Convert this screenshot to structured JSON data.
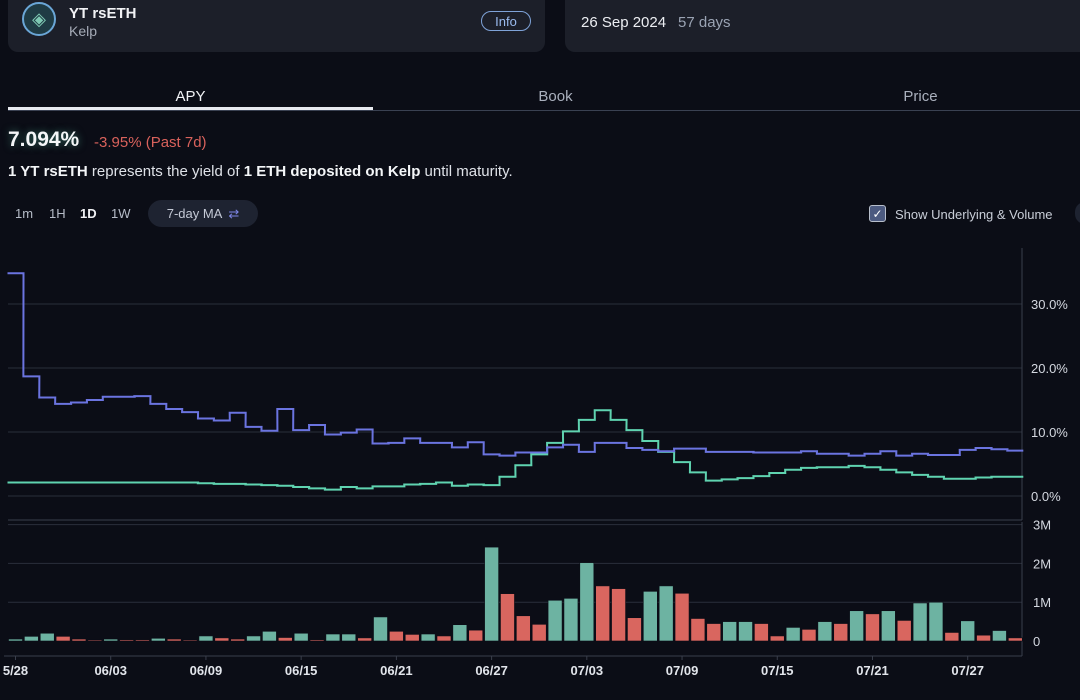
{
  "token": {
    "name": "YT rsETH",
    "protocol": "Kelp",
    "info_label": "Info",
    "logo_icon": "ethereum-layers-icon"
  },
  "maturity": {
    "date": "26 Sep 2024",
    "days": "57 days"
  },
  "tabs": [
    {
      "label": "APY",
      "active": true
    },
    {
      "label": "Book",
      "active": false
    },
    {
      "label": "Price",
      "active": false
    }
  ],
  "stats": {
    "apy": "7.094%",
    "change": "-3.95% (Past 7d)"
  },
  "description": {
    "p1": "1 YT rsETH",
    "p2": " represents the yield of ",
    "p3": "1 ETH deposited on Kelp",
    "p4": " until maturity."
  },
  "controls": {
    "timeframes": [
      {
        "label": "1m",
        "active": false
      },
      {
        "label": "1H",
        "active": false
      },
      {
        "label": "1D",
        "active": true
      },
      {
        "label": "1W",
        "active": false
      }
    ],
    "ma_label": "7-day MA",
    "ma_icon": "swap-arrows-icon",
    "show_underlying_label": "Show Underlying & Volume",
    "show_underlying_checked": true
  },
  "colors": {
    "implied": "#6b74e0",
    "underlying": "#5fd3b0",
    "vol_up": "#6db3a2",
    "vol_down": "#d9665f",
    "bg": "#0b0d16"
  },
  "chart_data": [
    {
      "type": "line",
      "ylim": [
        0,
        36
      ],
      "y_ticks": [
        "0.0%",
        "10.0%",
        "20.0%",
        "30.0%"
      ],
      "y_tick_values": [
        0,
        10,
        20,
        30
      ],
      "step": true,
      "series": [
        {
          "color": "#6b74e0",
          "values": [
            34.8,
            18.7,
            15.4,
            14.4,
            14.6,
            15.0,
            15.5,
            15.5,
            15.6,
            14.4,
            13.6,
            13.1,
            12.1,
            11.8,
            13.0,
            10.8,
            10.2,
            13.6,
            10.3,
            11.1,
            9.6,
            9.9,
            10.4,
            8.2,
            8.3,
            9.0,
            8.3,
            8.3,
            7.6,
            8.4,
            6.5,
            6.3,
            6.8,
            6.8,
            7.6,
            8.0,
            6.9,
            8.3,
            8.3,
            7.5,
            7.2,
            7.0,
            7.4,
            7.4,
            6.9,
            6.9,
            6.9,
            6.8,
            6.8,
            6.8,
            7.0,
            6.6,
            6.6,
            6.3,
            6.6,
            7.0,
            6.3,
            6.6,
            6.4,
            6.4,
            7.2,
            7.5,
            7.3,
            7.094
          ]
        },
        {
          "color": "#5fd3b0",
          "values": [
            2.1,
            2.1,
            2.1,
            2.1,
            2.1,
            2.1,
            2.1,
            2.1,
            2.1,
            2.1,
            2.1,
            2.1,
            2.0,
            1.9,
            1.9,
            1.8,
            1.7,
            1.6,
            1.4,
            1.2,
            1.0,
            1.4,
            1.2,
            1.5,
            1.5,
            1.8,
            1.9,
            2.1,
            1.6,
            1.8,
            1.7,
            3.0,
            4.8,
            6.5,
            8.3,
            10.1,
            11.9,
            13.4,
            11.9,
            10.3,
            8.6,
            6.9,
            5.3,
            3.7,
            2.4,
            2.6,
            2.8,
            3.1,
            3.6,
            4.1,
            4.4,
            4.5,
            4.5,
            4.7,
            4.5,
            4.1,
            3.7,
            3.3,
            3.0,
            2.7,
            2.7,
            2.9,
            3.0,
            3.0
          ]
        }
      ]
    },
    {
      "type": "bar",
      "ylim": [
        0,
        3000000
      ],
      "y_ticks": [
        "0",
        "1M",
        "2M",
        "3M"
      ],
      "y_tick_values": [
        0,
        1000000,
        2000000,
        3000000
      ],
      "x_ticks": [
        "5/28",
        "06/03",
        "06/09",
        "06/15",
        "06/21",
        "06/27",
        "07/03",
        "07/09",
        "07/15",
        "07/21",
        "07/27"
      ],
      "x_tick_index": [
        0,
        6,
        12,
        18,
        24,
        30,
        36,
        42,
        48,
        54,
        60
      ],
      "x_range": [
        "05/28",
        "07/30"
      ],
      "values": [
        0.05,
        0.12,
        0.2,
        0.12,
        0.05,
        0.02,
        0.05,
        0.03,
        0.03,
        0.07,
        0.05,
        0.02,
        0.13,
        0.08,
        0.05,
        0.13,
        0.25,
        0.09,
        0.2,
        0.03,
        0.18,
        0.18,
        0.08,
        0.62,
        0.25,
        0.17,
        0.18,
        0.13,
        0.42,
        0.28,
        2.42,
        1.22,
        0.65,
        0.43,
        1.05,
        1.1,
        2.02,
        1.42,
        1.35,
        0.6,
        1.28,
        1.42,
        1.23,
        0.58,
        0.45,
        0.5,
        0.5,
        0.45,
        0.13,
        0.35,
        0.3,
        0.5,
        0.45,
        0.78,
        0.7,
        0.78,
        0.53,
        0.98,
        1.0,
        0.22,
        0.52,
        0.15,
        0.27,
        0.08
      ],
      "value_unit": "M",
      "direction": [
        "up",
        "up",
        "up",
        "down",
        "down",
        "down",
        "up",
        "down",
        "down",
        "up",
        "down",
        "down",
        "up",
        "down",
        "down",
        "up",
        "up",
        "down",
        "up",
        "down",
        "up",
        "up",
        "down",
        "up",
        "down",
        "down",
        "up",
        "down",
        "up",
        "down",
        "up",
        "down",
        "down",
        "down",
        "up",
        "up",
        "up",
        "down",
        "down",
        "down",
        "up",
        "up",
        "down",
        "down",
        "down",
        "up",
        "up",
        "down",
        "down",
        "up",
        "down",
        "up",
        "down",
        "up",
        "down",
        "up",
        "down",
        "up",
        "up",
        "down",
        "up",
        "down",
        "up",
        "down"
      ]
    }
  ]
}
